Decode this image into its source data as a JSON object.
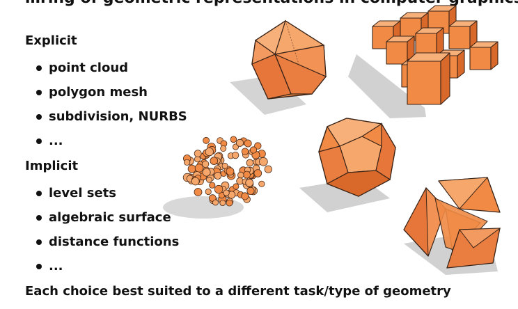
{
  "slide": {
    "cut_title": "…ring of geometric representations in computer graphics",
    "explicit": {
      "heading": "Explicit",
      "items": [
        "point cloud",
        "polygon mesh",
        "subdivision, NURBS",
        "..."
      ]
    },
    "implicit": {
      "heading": "Implicit",
      "items": [
        "level sets",
        "algebraic surface",
        "distance functions",
        "..."
      ]
    },
    "footer": "Each choice best suited to a different task/type of geometry"
  },
  "colors": {
    "orange_light": "#f6a86c",
    "orange": "#f08a45",
    "orange_dark": "#d8692a",
    "edge": "#3a2418",
    "shadow": "#c9c9c9"
  },
  "illustrations": [
    "icosahedron",
    "voxel-grid",
    "point-cloud-sphere",
    "dodecahedron",
    "exploded-tetrahedron"
  ]
}
